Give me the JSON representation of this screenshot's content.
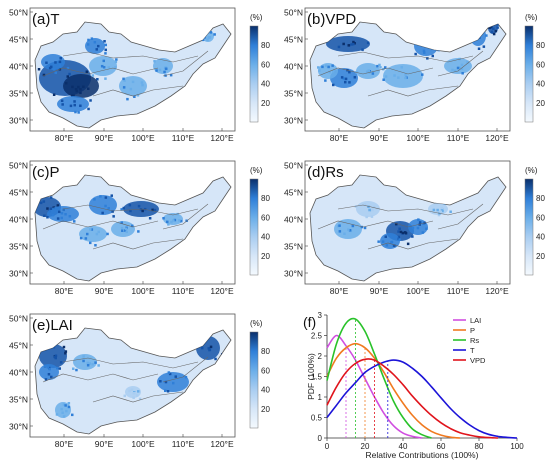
{
  "figure": {
    "lat_labels": [
      "50°N",
      "45°N",
      "40°N",
      "35°N",
      "30°N"
    ],
    "lon_labels": [
      "80°E",
      "90°E",
      "100°E",
      "110°E",
      "120°E"
    ],
    "colorbar_unit": "(%)",
    "colorbar_ticks": [
      "80",
      "60",
      "40",
      "20"
    ],
    "colormap": [
      "#f4f9fe",
      "#d6e6f8",
      "#a9cdf1",
      "#6aaee9",
      "#2f7fd8",
      "#1553a8",
      "#0a2f6b"
    ]
  },
  "maps": [
    {
      "id": "a",
      "label": "(a)T"
    },
    {
      "id": "b",
      "label": "(b)VPD"
    },
    {
      "id": "c",
      "label": "(c)P"
    },
    {
      "id": "d",
      "label": "(d)Rs"
    },
    {
      "id": "e",
      "label": "(e)LAI"
    }
  ],
  "chart_data": {
    "type": "line",
    "panel_label": "(f)",
    "xlabel": "Relative Contributions (100%)",
    "ylabel": "PDF (100%)",
    "xlim": [
      0,
      100
    ],
    "ylim": [
      0,
      3
    ],
    "xticks": [
      "0",
      "20",
      "40",
      "60",
      "80",
      "100"
    ],
    "yticks": [
      "0",
      "0.5",
      "1",
      "1.5",
      "2",
      "2.5",
      "3"
    ],
    "series": [
      {
        "name": "LAI",
        "color": "#d04ee0",
        "mean": 10,
        "x": [
          0,
          5,
          10,
          15,
          20,
          25,
          30,
          35,
          40,
          45,
          50
        ],
        "y": [
          2.2,
          2.5,
          2.25,
          1.9,
          1.45,
          1.0,
          0.6,
          0.3,
          0.12,
          0.04,
          0.0
        ]
      },
      {
        "name": "P",
        "color": "#f07a20",
        "mean": 20,
        "x": [
          0,
          5,
          10,
          15,
          20,
          25,
          30,
          35,
          40,
          45,
          50,
          55,
          60,
          65,
          70
        ],
        "y": [
          1.5,
          1.95,
          2.2,
          2.3,
          2.2,
          1.95,
          1.6,
          1.2,
          0.85,
          0.55,
          0.32,
          0.16,
          0.07,
          0.02,
          0.0
        ]
      },
      {
        "name": "Rs",
        "color": "#29c22a",
        "mean": 15,
        "x": [
          0,
          5,
          10,
          15,
          20,
          25,
          30,
          35,
          40,
          45,
          50,
          55
        ],
        "y": [
          1.4,
          2.3,
          2.8,
          2.9,
          2.6,
          2.05,
          1.45,
          0.9,
          0.5,
          0.22,
          0.08,
          0.0
        ]
      },
      {
        "name": "T",
        "color": "#1c14d8",
        "mean": 32,
        "x": [
          0,
          5,
          10,
          15,
          20,
          25,
          30,
          35,
          40,
          45,
          50,
          55,
          60,
          65,
          70,
          75,
          80,
          85,
          90,
          95,
          100
        ],
        "y": [
          0.5,
          0.8,
          1.1,
          1.35,
          1.6,
          1.75,
          1.85,
          1.9,
          1.85,
          1.7,
          1.5,
          1.25,
          0.98,
          0.72,
          0.5,
          0.32,
          0.18,
          0.09,
          0.04,
          0.015,
          0.0
        ]
      },
      {
        "name": "VPD",
        "color": "#e0141c",
        "mean": 25,
        "x": [
          0,
          5,
          10,
          15,
          20,
          25,
          30,
          35,
          40,
          45,
          50,
          55,
          60,
          65,
          70,
          75,
          80,
          85,
          90
        ],
        "y": [
          0.8,
          1.25,
          1.6,
          1.82,
          1.92,
          1.9,
          1.75,
          1.55,
          1.3,
          1.02,
          0.77,
          0.55,
          0.37,
          0.23,
          0.13,
          0.07,
          0.03,
          0.01,
          0.0
        ]
      }
    ]
  }
}
